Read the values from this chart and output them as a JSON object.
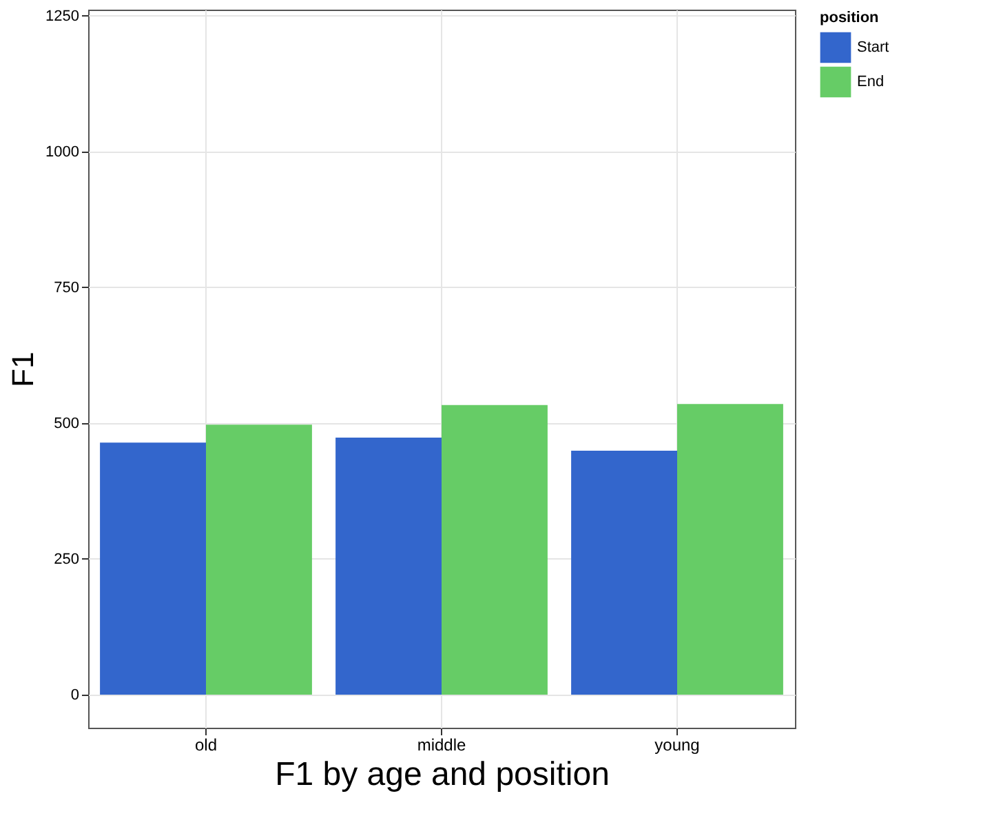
{
  "chart_data": {
    "type": "bar",
    "xlabel": "F1 by age and position",
    "ylabel": "F1",
    "legend_title": "position",
    "categories": [
      "old",
      "middle",
      "young"
    ],
    "series": [
      {
        "name": "Start",
        "color": "#3366cc",
        "values": [
          464,
          473,
          449
        ]
      },
      {
        "name": "End",
        "color": "#66cc66",
        "values": [
          497,
          533,
          535
        ]
      }
    ],
    "ylim": [
      -61,
      1261
    ],
    "yticks": [
      0,
      250,
      500,
      750,
      1000,
      1250
    ],
    "grid": true,
    "legend": "right"
  }
}
